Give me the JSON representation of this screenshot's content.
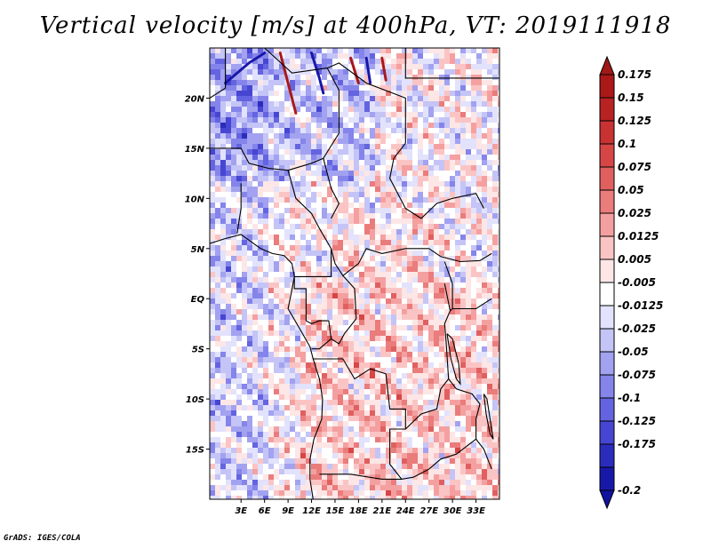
{
  "title": "Vertical velocity [m/s] at 400hPa, VT: 2019111918",
  "credit": "GrADS: IGES/COLA",
  "map": {
    "lon_range": [
      -1,
      36
    ],
    "lat_range": [
      -20,
      25
    ],
    "lat_ticks": [
      {
        "value": 20,
        "label": "20N"
      },
      {
        "value": 15,
        "label": "15N"
      },
      {
        "value": 10,
        "label": "10N"
      },
      {
        "value": 5,
        "label": "5N"
      },
      {
        "value": 0,
        "label": "EQ"
      },
      {
        "value": -5,
        "label": "5S"
      },
      {
        "value": -10,
        "label": "10S"
      },
      {
        "value": -15,
        "label": "15S"
      }
    ],
    "lon_ticks": [
      {
        "value": 3,
        "label": "3E"
      },
      {
        "value": 6,
        "label": "6E"
      },
      {
        "value": 9,
        "label": "9E"
      },
      {
        "value": 12,
        "label": "12E"
      },
      {
        "value": 15,
        "label": "15E"
      },
      {
        "value": 18,
        "label": "18E"
      },
      {
        "value": 21,
        "label": "21E"
      },
      {
        "value": 24,
        "label": "24E"
      },
      {
        "value": 27,
        "label": "27E"
      },
      {
        "value": 30,
        "label": "30E"
      },
      {
        "value": 33,
        "label": "33E"
      }
    ]
  },
  "colorbar": {
    "levels": [
      {
        "label": "0.175",
        "color": "#aa1818"
      },
      {
        "label": "0.15",
        "color": "#b82222"
      },
      {
        "label": "0.125",
        "color": "#c83232"
      },
      {
        "label": "0.1",
        "color": "#d64646"
      },
      {
        "label": "0.075",
        "color": "#e06060"
      },
      {
        "label": "0.05",
        "color": "#ea7c7c"
      },
      {
        "label": "0.025",
        "color": "#f4a0a0"
      },
      {
        "label": "0.0125",
        "color": "#fbc4c4"
      },
      {
        "label": "0.005",
        "color": "#fde6e6"
      },
      {
        "label": "-0.005",
        "color": "#ffffff"
      },
      {
        "label": "-0.0125",
        "color": "#e2e2fc"
      },
      {
        "label": "-0.025",
        "color": "#c4c4f6"
      },
      {
        "label": "-0.05",
        "color": "#a2a2f0"
      },
      {
        "label": "-0.075",
        "color": "#8484ea"
      },
      {
        "label": "-0.1",
        "color": "#6464e0"
      },
      {
        "label": "-0.125",
        "color": "#4646d2"
      },
      {
        "label": "-0.175",
        "color": "#2c2cbc"
      },
      {
        "label": "-0.2",
        "color": "#1818a8"
      }
    ],
    "top_color": "#a01818",
    "bottom_color": "#12129e"
  }
}
